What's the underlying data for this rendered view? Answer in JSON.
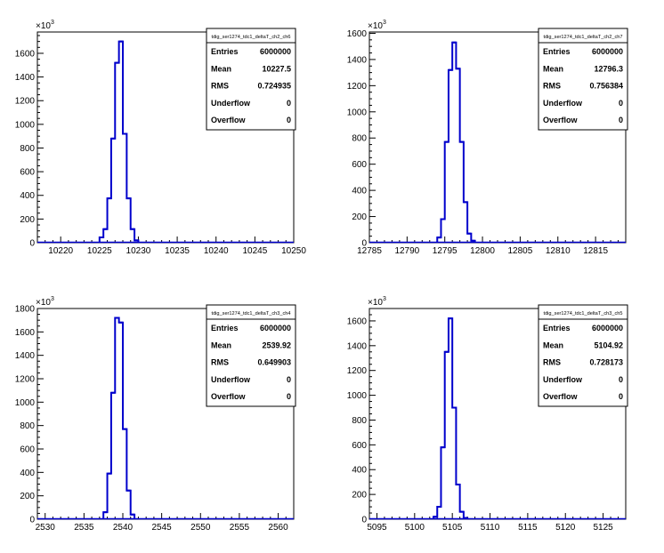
{
  "chart_data": [
    {
      "type": "histogram",
      "title": "",
      "stats_title": "tdig_ser1274_tdc1_deltaT_ch2_ch6",
      "y_multiplier_label": "×10³",
      "y_exponent": "3",
      "xlim": [
        10217,
        10250
      ],
      "ylim": [
        0,
        1780
      ],
      "x_ticks": [
        10220,
        10225,
        10230,
        10235,
        10240,
        10245,
        10250
      ],
      "y_ticks": [
        0,
        200,
        400,
        600,
        800,
        1000,
        1200,
        1400,
        1600
      ],
      "bin_width": 0.5,
      "bins": [
        [
          10225.0,
          45
        ],
        [
          10225.5,
          115
        ],
        [
          10226.0,
          375
        ],
        [
          10226.5,
          880
        ],
        [
          10227.0,
          1520
        ],
        [
          10227.5,
          1700
        ],
        [
          10228.0,
          920
        ],
        [
          10228.5,
          375
        ],
        [
          10229.0,
          115
        ],
        [
          10229.5,
          20
        ]
      ],
      "stats": [
        {
          "label": "Entries",
          "value": "6000000"
        },
        {
          "label": "Mean",
          "value": "10227.5"
        },
        {
          "label": "RMS",
          "value": "0.724935"
        },
        {
          "label": "Underflow",
          "value": "0"
        },
        {
          "label": "Overflow",
          "value": "0"
        }
      ]
    },
    {
      "type": "histogram",
      "title": "",
      "stats_title": "tdig_ser1274_tdc1_deltaT_ch2_ch7",
      "y_multiplier_label": "×10³",
      "y_exponent": "3",
      "xlim": [
        12785,
        12819
      ],
      "ylim": [
        0,
        1610
      ],
      "x_ticks": [
        12785,
        12790,
        12795,
        12800,
        12805,
        12810,
        12815
      ],
      "y_ticks": [
        0,
        200,
        400,
        600,
        800,
        1000,
        1200,
        1400,
        1600
      ],
      "bin_width": 0.5,
      "bins": [
        [
          12794.0,
          40
        ],
        [
          12794.5,
          180
        ],
        [
          12795.0,
          770
        ],
        [
          12795.5,
          1320
        ],
        [
          12796.0,
          1530
        ],
        [
          12796.5,
          1330
        ],
        [
          12797.0,
          770
        ],
        [
          12797.5,
          310
        ],
        [
          12798.0,
          70
        ],
        [
          12798.5,
          15
        ]
      ],
      "stats": [
        {
          "label": "Entries",
          "value": "6000000"
        },
        {
          "label": "Mean",
          "value": "12796.3"
        },
        {
          "label": "RMS",
          "value": "0.756384"
        },
        {
          "label": "Underflow",
          "value": "0"
        },
        {
          "label": "Overflow",
          "value": "0"
        }
      ]
    },
    {
      "type": "histogram",
      "title": "",
      "stats_title": "tdig_ser1274_tdc1_deltaT_ch3_ch4",
      "y_multiplier_label": "×10³",
      "y_exponent": "3",
      "xlim": [
        2529,
        2562
      ],
      "ylim": [
        0,
        1800
      ],
      "x_ticks": [
        2530,
        2535,
        2540,
        2545,
        2550,
        2555,
        2560
      ],
      "y_ticks": [
        0,
        200,
        400,
        600,
        800,
        1000,
        1200,
        1400,
        1600,
        1800
      ],
      "bin_width": 0.5,
      "bins": [
        [
          2537.5,
          60
        ],
        [
          2538.0,
          390
        ],
        [
          2538.5,
          1080
        ],
        [
          2539.0,
          1720
        ],
        [
          2539.5,
          1680
        ],
        [
          2540.0,
          770
        ],
        [
          2540.5,
          245
        ],
        [
          2541.0,
          40
        ]
      ],
      "stats": [
        {
          "label": "Entries",
          "value": "6000000"
        },
        {
          "label": "Mean",
          "value": "2539.92"
        },
        {
          "label": "RMS",
          "value": "0.649903"
        },
        {
          "label": "Underflow",
          "value": "0"
        },
        {
          "label": "Overflow",
          "value": "0"
        }
      ]
    },
    {
      "type": "histogram",
      "title": "",
      "stats_title": "tdig_ser1274_tdc1_deltaT_ch3_ch5",
      "y_multiplier_label": "×10³",
      "y_exponent": "3",
      "xlim": [
        5094,
        5128
      ],
      "ylim": [
        0,
        1700
      ],
      "x_ticks": [
        5095,
        5100,
        5105,
        5110,
        5115,
        5120,
        5125
      ],
      "y_ticks": [
        0,
        200,
        400,
        600,
        800,
        1000,
        1200,
        1400,
        1600
      ],
      "bin_width": 0.5,
      "bins": [
        [
          5102.5,
          20
        ],
        [
          5103.0,
          100
        ],
        [
          5103.5,
          580
        ],
        [
          5104.0,
          1350
        ],
        [
          5104.5,
          1620
        ],
        [
          5105.0,
          900
        ],
        [
          5105.5,
          280
        ],
        [
          5106.0,
          60
        ],
        [
          5106.5,
          10
        ]
      ],
      "stats": [
        {
          "label": "Entries",
          "value": "6000000"
        },
        {
          "label": "Mean",
          "value": "5104.92"
        },
        {
          "label": "RMS",
          "value": "0.728173"
        },
        {
          "label": "Underflow",
          "value": "0"
        },
        {
          "label": "Overflow",
          "value": "0"
        }
      ]
    }
  ],
  "colors": {
    "histogram_line": "#0000cc",
    "axis": "#000000",
    "background": "#ffffff"
  }
}
